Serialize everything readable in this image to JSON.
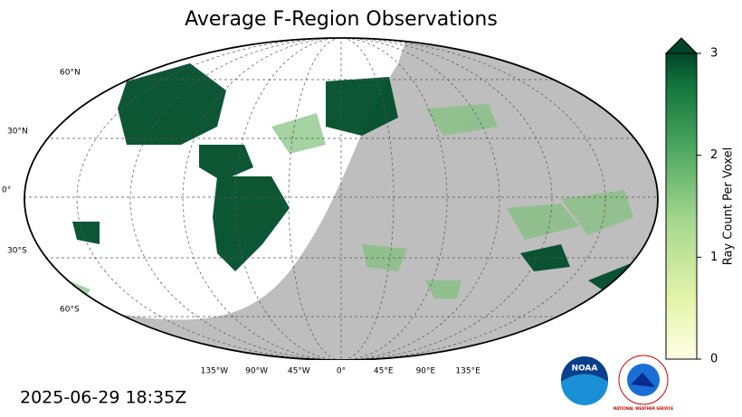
{
  "title": "Average F-Region Observations",
  "map": {
    "lat_labels": [
      "60°N",
      "30°N",
      "0°",
      "30°S",
      "60°S"
    ],
    "lon_labels": [
      "135°W",
      "90°W",
      "45°W",
      "0°",
      "45°E",
      "90°E",
      "135°E"
    ]
  },
  "colorbar": {
    "label": "Ray Count Per Voxel",
    "lim": [
      0,
      3
    ],
    "ticks": [
      0,
      1,
      2,
      3
    ]
  },
  "timestamp": "2025-06-29 18:35Z",
  "logos": {
    "noaa": "NOAA",
    "nws": "NATIONAL WEATHER SERVICE"
  }
}
